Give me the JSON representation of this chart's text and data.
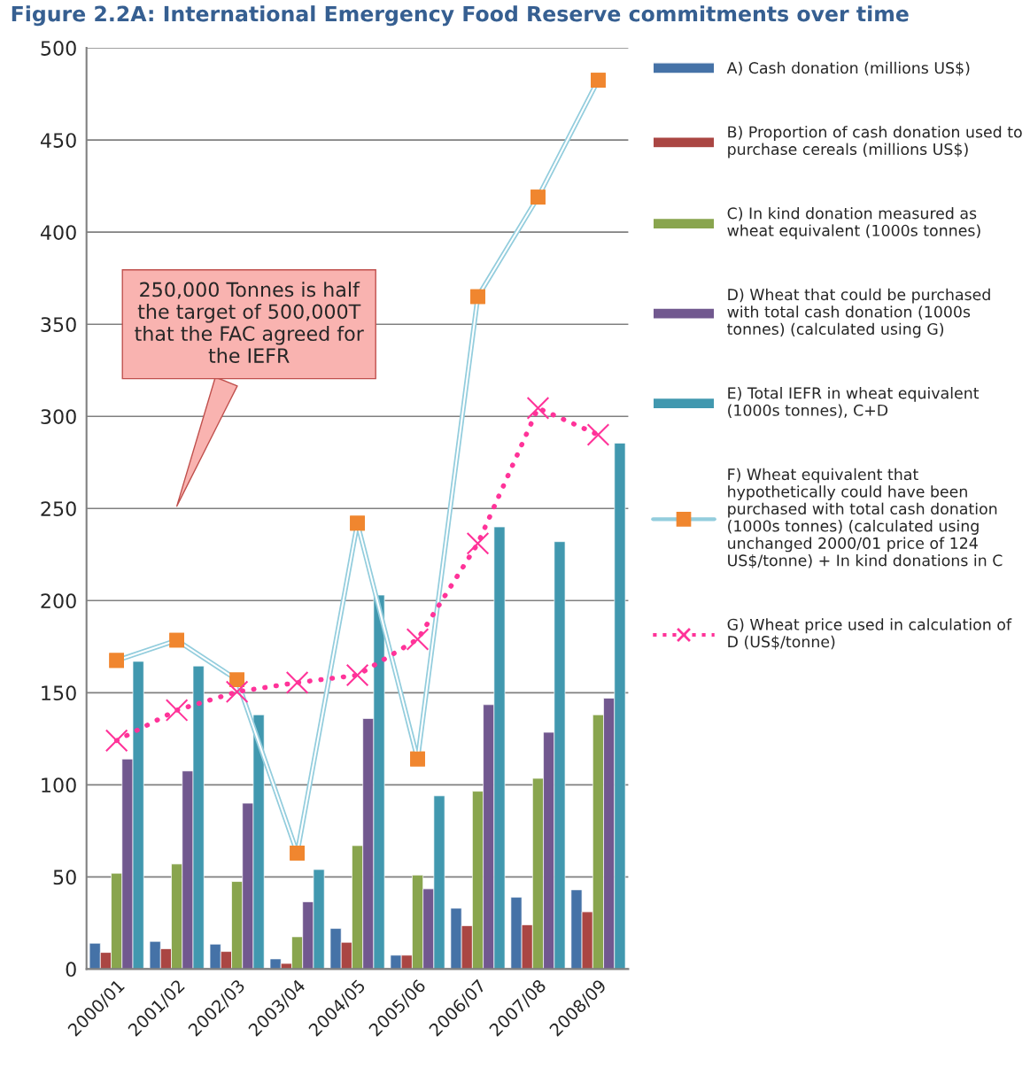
{
  "chart_data": {
    "type": "bar",
    "title": "Figure 2.2A: International Emergency Food Reserve commitments over time",
    "categories": [
      "2000/01",
      "2001/02",
      "2002/03",
      "2003/04",
      "2004/05",
      "2005/06",
      "2006/07",
      "2007/08",
      "2008/09"
    ],
    "series": [
      {
        "name": "A) Cash donation (millions US$)",
        "color": "#4572a7",
        "values": [
          14,
          15,
          13.5,
          5.5,
          22,
          7.5,
          33,
          39,
          43
        ]
      },
      {
        "name": "B) Proportion of cash donation used to\npurchase cereals (millions US$)",
        "color": "#aa4643",
        "values": [
          9,
          11,
          9.5,
          3,
          14.5,
          7.5,
          23.5,
          24,
          31
        ]
      },
      {
        "name": "C) In kind donation measured as\nwheat equivalent (1000s tonnes)",
        "color": "#89a54e",
        "values": [
          52,
          57,
          47.5,
          17.5,
          67,
          51,
          96.5,
          103.5,
          138
        ]
      },
      {
        "name": "D) Wheat that could be purchased\nwith total cash donation (1000s\ntonnes) (calculated using G)",
        "color": "#71588f",
        "values": [
          114,
          107.5,
          90,
          36.5,
          136,
          43.5,
          143.5,
          128.5,
          147
        ]
      },
      {
        "name": "E) Total IEFR in wheat equivalent\n(1000s tonnes), C+D",
        "color": "#4198af",
        "values": [
          167,
          164.5,
          138,
          54,
          203,
          94,
          240,
          232,
          285.5
        ]
      },
      {
        "name": "F) Wheat equivalent that\nhypothetically could have been\npurchased with total cash donation\n(1000s tonnes) (calculated using\nunchanged 2000/01 price of 124\nUS$/tonne) + In kind donations in C",
        "type": "line",
        "color": "#93cddd",
        "colors": [
          "#f0862f",
          "#f0862f",
          "#f0862f",
          "#f0862f",
          "#f0862f",
          "#f0862f",
          "#f0862f",
          "#f0862f",
          "#f0862f"
        ],
        "marker": "square",
        "line_style": "solid",
        "values": [
          167.5,
          178.5,
          157,
          63,
          242,
          114,
          365,
          419,
          482.5
        ]
      },
      {
        "name": "G) Wheat price used in calculation of\nD (US$/tonne)",
        "type": "line",
        "color": "#ff3399",
        "marker": "cross",
        "line_style": "dotted",
        "values": [
          124,
          140.5,
          150.5,
          155.5,
          159.5,
          179,
          231,
          304.5,
          290
        ]
      }
    ],
    "ylim": [
      0,
      500
    ],
    "yticks": [
      0,
      50,
      100,
      150,
      200,
      250,
      300,
      350,
      400,
      450,
      500
    ],
    "grid": "y",
    "legend": "right",
    "annotations": [
      "250,000 Tonnes is half\nthe target of 500,000T\nthat the FAC agreed for\nthe IEFR"
    ]
  }
}
